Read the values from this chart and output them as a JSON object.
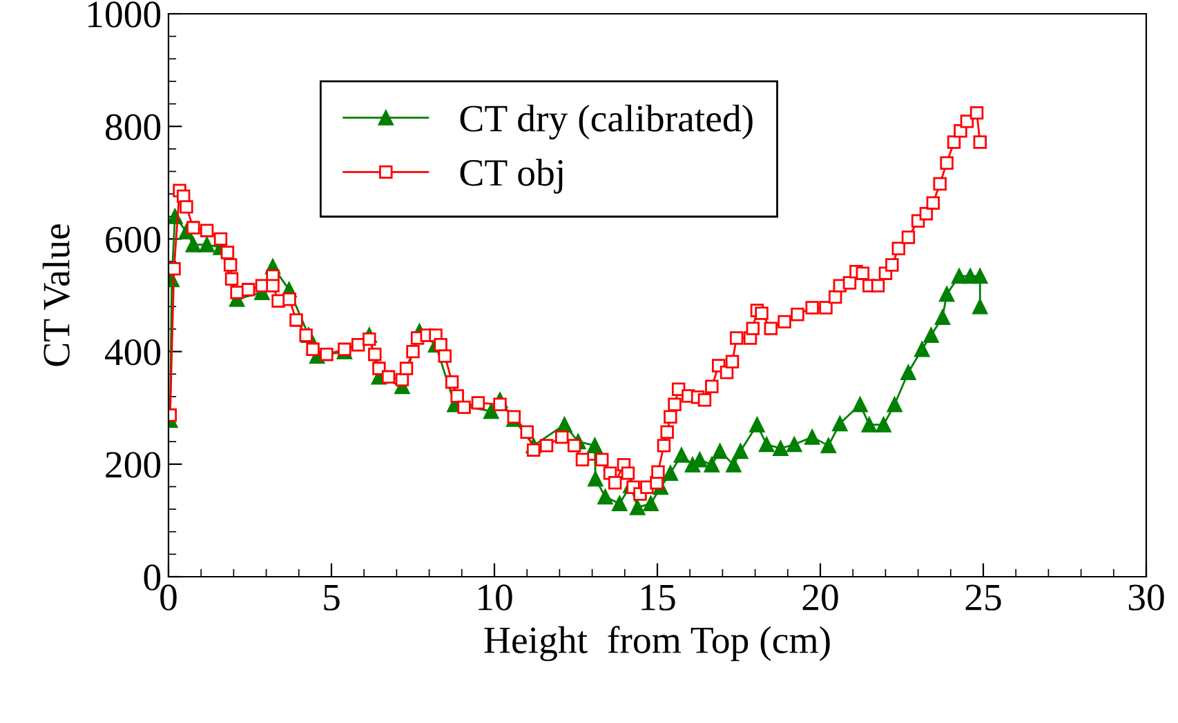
{
  "chart_data": {
    "type": "line",
    "xlabel": "Height  from Top (cm)",
    "ylabel": "CT Value",
    "xlim": [
      0,
      30
    ],
    "ylim": [
      0,
      1000
    ],
    "xticks": [
      0,
      5,
      10,
      15,
      20,
      25,
      30
    ],
    "yticks": [
      0,
      200,
      400,
      600,
      800,
      1000
    ],
    "grid": false,
    "legend": "top left",
    "line_style": "solid",
    "series": [
      {
        "name": "CT dry (calibrated)",
        "color": "#008000",
        "marker": "triangle",
        "x": [
          0.05,
          0.1,
          0.2,
          0.55,
          0.76,
          1.18,
          1.6,
          2.1,
          2.87,
          3.2,
          3.7,
          4.3,
          4.56,
          5.4,
          6.16,
          6.46,
          7.17,
          7.7,
          8.2,
          8.78,
          9.9,
          10.17,
          10.6,
          11.2,
          12.15,
          12.57,
          13.08,
          13.1,
          13.4,
          13.84,
          14.18,
          14.39,
          14.8,
          15.1,
          15.4,
          15.74,
          16.08,
          16.3,
          16.67,
          16.92,
          17.34,
          17.55,
          18.06,
          18.35,
          18.78,
          19.2,
          19.75,
          20.25,
          20.6,
          21.22,
          21.5,
          21.94,
          22.28,
          22.7,
          23.12,
          23.4,
          23.75,
          23.88,
          24.26,
          24.6,
          24.9,
          24.9
        ],
        "values": [
          278,
          528,
          640,
          613,
          590,
          590,
          585,
          493,
          505,
          551,
          510,
          429,
          392,
          400,
          429,
          355,
          338,
          436,
          412,
          306,
          294,
          314,
          280,
          233,
          270,
          240,
          233,
          174,
          142,
          130,
          162,
          123,
          130,
          159,
          184,
          216,
          199,
          208,
          199,
          223,
          199,
          223,
          270,
          235,
          228,
          235,
          248,
          233,
          272,
          306,
          270,
          270,
          306,
          363,
          404,
          429,
          461,
          502,
          534,
          534,
          534,
          480
        ]
      },
      {
        "name": "CT obj",
        "color": "#ff0000",
        "marker": "square",
        "x": [
          0.05,
          0.17,
          0.34,
          0.46,
          0.55,
          0.76,
          1.18,
          1.6,
          1.81,
          1.9,
          1.94,
          2.1,
          2.45,
          2.87,
          3.2,
          3.2,
          3.37,
          3.71,
          3.92,
          4.22,
          4.43,
          4.85,
          5.4,
          5.82,
          6.16,
          6.33,
          6.46,
          6.75,
          7.17,
          7.3,
          7.5,
          7.64,
          7.93,
          8.2,
          8.35,
          8.48,
          8.7,
          8.86,
          9.07,
          9.5,
          10.17,
          10.6,
          11.0,
          11.2,
          11.6,
          12.07,
          12.45,
          12.7,
          13.3,
          13.55,
          13.7,
          13.97,
          14.1,
          14.26,
          14.47,
          14.68,
          14.98,
          15.02,
          15.2,
          15.3,
          15.4,
          15.53,
          15.65,
          15.95,
          16.24,
          16.45,
          16.67,
          16.88,
          17.13,
          17.3,
          17.43,
          17.85,
          17.93,
          18.06,
          18.2,
          18.48,
          18.9,
          19.3,
          19.75,
          20.17,
          20.46,
          20.6,
          20.9,
          21.1,
          21.3,
          21.5,
          21.77,
          22.0,
          22.2,
          22.4,
          22.7,
          23.0,
          23.25,
          23.46,
          23.67,
          23.88,
          24.1,
          24.3,
          24.5,
          24.8,
          24.9
        ],
        "values": [
          287,
          547,
          686,
          676,
          657,
          620,
          615,
          600,
          576,
          554,
          529,
          505,
          510,
          517,
          534,
          517,
          490,
          493,
          456,
          429,
          404,
          395,
          404,
          412,
          422,
          395,
          370,
          355,
          350,
          370,
          400,
          424,
          429,
          429,
          412,
          392,
          346,
          321,
          301,
          309,
          306,
          284,
          257,
          225,
          233,
          248,
          233,
          208,
          208,
          184,
          167,
          199,
          184,
          159,
          147,
          159,
          167,
          186,
          233,
          257,
          284,
          306,
          333,
          321,
          319,
          314,
          338,
          375,
          363,
          382,
          424,
          424,
          441,
          473,
          468,
          441,
          453,
          466,
          478,
          478,
          497,
          517,
          522,
          542,
          539,
          517,
          517,
          539,
          554,
          583,
          603,
          632,
          645,
          664,
          698,
          735,
          772,
          792,
          809,
          824,
          772
        ]
      }
    ]
  }
}
